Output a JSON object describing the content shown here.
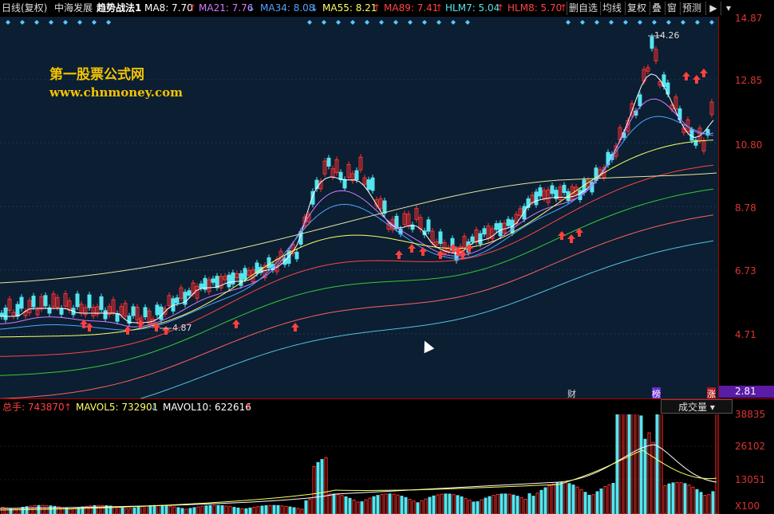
{
  "header": {
    "period": "日线(复权)",
    "stock": "中海发展",
    "formula": "趋势战法1",
    "ma8": "MA8: 7.70",
    "ma21": "MA21: 7.76",
    "ma34": "MA34: 8.08",
    "ma55": "MA55: 8.21",
    "ma89": "MA89: 7.41",
    "hlm7": "HLM7: 5.04",
    "hlm8": "HLM8: 5.70",
    "arrow_up": "↑",
    "arrow_down": "↓"
  },
  "toolbar": {
    "del_watch": "删自选",
    "ma_line": "均线",
    "fuquan": "复权",
    "overlay": "叠",
    "window": "窗",
    "forecast": "预测"
  },
  "watermark": {
    "line1": "第一股票公式网",
    "line2": "www.chnmoney.com"
  },
  "price_axis": [
    "14.87",
    "12.85",
    "10.80",
    "8.78",
    "6.73",
    "4.71"
  ],
  "current_price": "2.81",
  "annotations": {
    "high": "14.26",
    "low": "4.87"
  },
  "markers": {
    "cai": "财",
    "bang": "榜",
    "zhang": "涨"
  },
  "volume": {
    "total": "总手: 743870",
    "mavol5": "MAVOL5: 732901",
    "mavol10": "MAVOL10: 622616",
    "dropdown": "成交量",
    "axis": [
      "38835",
      "26102",
      "13051",
      "X100"
    ]
  },
  "colors": {
    "background": "#0b1e32",
    "up_candle": "#ff3030",
    "down_candle": "#55e5ef",
    "ma8": "#ffffff",
    "ma21": "#d07cff",
    "ma34": "#4fa3ff",
    "ma55": "#ffff66",
    "ma89": "#ff4444"
  }
}
